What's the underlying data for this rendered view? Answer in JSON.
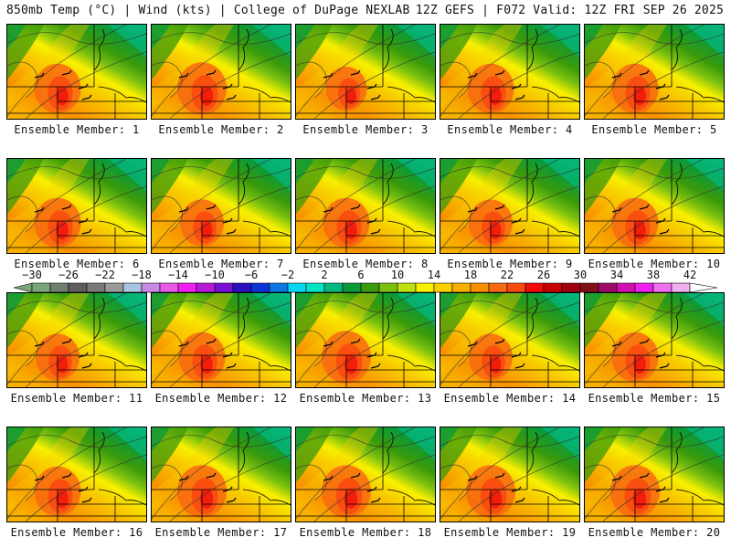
{
  "header": {
    "left_title": "850mb Temp (°C) | Wind (kts) | College of DuPage NEXLAB",
    "right_title": "12Z GEFS | F072 Valid: 12Z FRI SEP 26 2025"
  },
  "chart_data": {
    "type": "heatmap",
    "title": "850mb Temp (°C) | Wind (kts)",
    "source": "College of DuPage NEXLAB",
    "model": "12Z GEFS",
    "forecast_hour": "F072",
    "valid": "12Z FRI SEP 26 2025",
    "layout": "5 columns x 4 rows of ensemble member panels",
    "panels": [
      {
        "label": "Ensemble Member: 1",
        "member": 1,
        "warm_core": 0.85
      },
      {
        "label": "Ensemble Member: 2",
        "member": 2,
        "warm_core": 0.9
      },
      {
        "label": "Ensemble Member: 3",
        "member": 3,
        "warm_core": 0.75
      },
      {
        "label": "Ensemble Member: 4",
        "member": 4,
        "warm_core": 0.85
      },
      {
        "label": "Ensemble Member: 5",
        "member": 5,
        "warm_core": 0.85
      },
      {
        "label": "Ensemble Member: 6",
        "member": 6,
        "warm_core": 0.85
      },
      {
        "label": "Ensemble Member: 7",
        "member": 7,
        "warm_core": 0.8
      },
      {
        "label": "Ensemble Member: 8",
        "member": 8,
        "warm_core": 0.85
      },
      {
        "label": "Ensemble Member: 9",
        "member": 9,
        "warm_core": 0.8
      },
      {
        "label": "Ensemble Member: 10",
        "member": 10,
        "warm_core": 0.85
      },
      {
        "label": "Ensemble Member: 11",
        "member": 11,
        "warm_core": 0.8
      },
      {
        "label": "Ensemble Member: 12",
        "member": 12,
        "warm_core": 0.85
      },
      {
        "label": "Ensemble Member: 13",
        "member": 13,
        "warm_core": 0.9
      },
      {
        "label": "Ensemble Member: 14",
        "member": 14,
        "warm_core": 0.8
      },
      {
        "label": "Ensemble Member: 15",
        "member": 15,
        "warm_core": 0.85
      },
      {
        "label": "Ensemble Member: 16",
        "member": 16,
        "warm_core": 0.85
      },
      {
        "label": "Ensemble Member: 17",
        "member": 17,
        "warm_core": 0.9
      },
      {
        "label": "Ensemble Member: 18",
        "member": 18,
        "warm_core": 0.9
      },
      {
        "label": "Ensemble Member: 19",
        "member": 19,
        "warm_core": 0.9
      },
      {
        "label": "Ensemble Member: 20",
        "member": 20,
        "warm_core": 0.9
      }
    ],
    "colorbar": {
      "units": "°C",
      "min": -30,
      "max": 42,
      "step": 2,
      "tick_labels": [
        "-30",
        "-26",
        "-22",
        "-18",
        "-14",
        "-10",
        "-6",
        "-2",
        "2",
        "6",
        "10",
        "14",
        "18",
        "22",
        "26",
        "30",
        "34",
        "38",
        "42"
      ],
      "extend": "both",
      "colors": [
        "#7aa57a",
        "#6e7f6e",
        "#5e5e5e",
        "#7a7a7a",
        "#9a9a9a",
        "#a9c4e0",
        "#c88ae6",
        "#e65ae6",
        "#f020f0",
        "#b81bd6",
        "#7a10d8",
        "#2a10c0",
        "#0a34d6",
        "#0a78e0",
        "#06d6f0",
        "#05e4c2",
        "#05b880",
        "#0a9a3a",
        "#3a9a0a",
        "#7ac010",
        "#c0e010",
        "#f8f000",
        "#f8d000",
        "#f8b000",
        "#f89000",
        "#f86a10",
        "#f84a10",
        "#f00a0a",
        "#c80000",
        "#a00010",
        "#801018",
        "#a00a6a",
        "#d010b0",
        "#f020f0",
        "#f070f0",
        "#f0b0f0"
      ]
    }
  }
}
